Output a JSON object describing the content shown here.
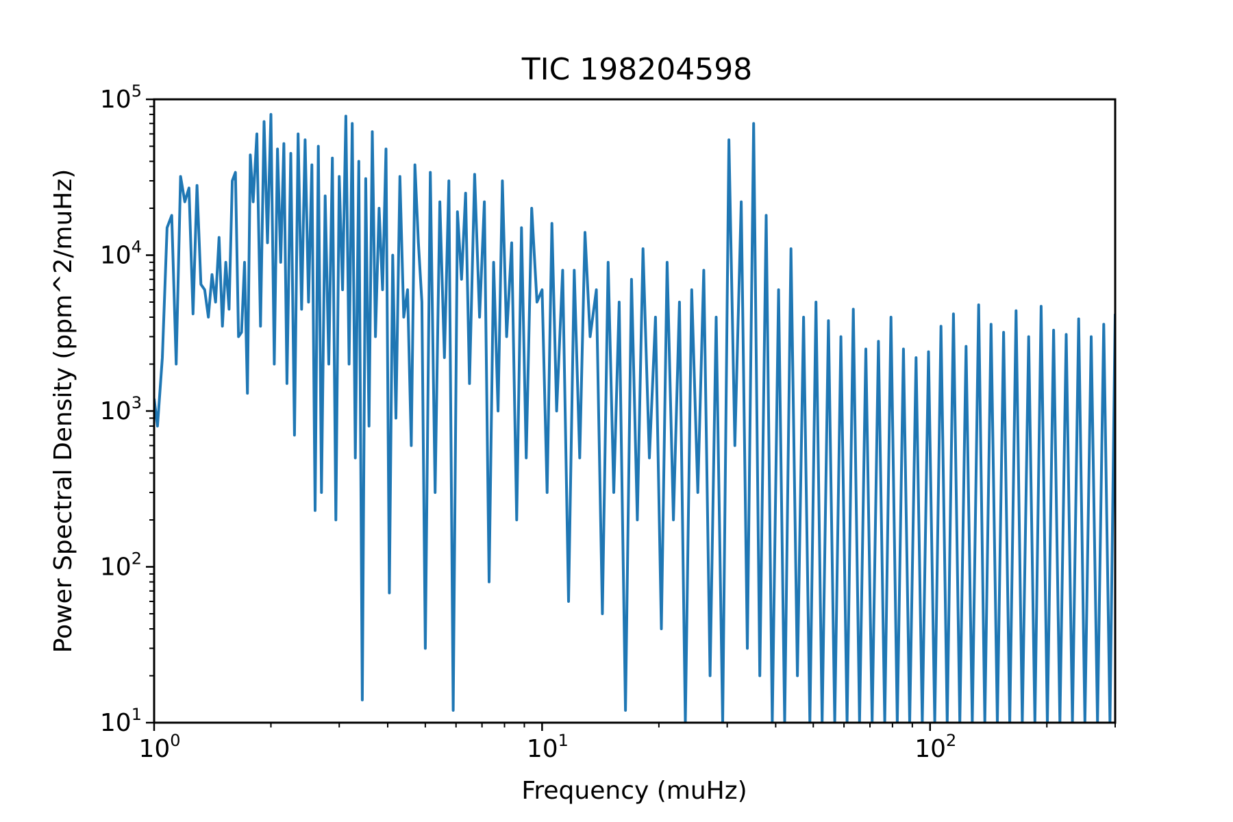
{
  "chart_data": {
    "type": "line",
    "title": "TIC 198204598",
    "xlabel": "Frequency (muHz)",
    "ylabel": "Power Spectral Density (ppm^2/muHz)",
    "xscale": "log",
    "yscale": "log",
    "xlim": [
      1,
      300
    ],
    "ylim": [
      10,
      100000
    ],
    "grid": false,
    "legend": "none",
    "line_color": "#1f77b4",
    "x_ticks": [
      {
        "value": 1,
        "base": "10",
        "exp": "0"
      },
      {
        "value": 10,
        "base": "10",
        "exp": "1"
      },
      {
        "value": 100,
        "base": "10",
        "exp": "2"
      }
    ],
    "y_ticks": [
      {
        "value": 10,
        "base": "10",
        "exp": "1"
      },
      {
        "value": 100,
        "base": "10",
        "exp": "2"
      },
      {
        "value": 1000,
        "base": "10",
        "exp": "3"
      },
      {
        "value": 10000,
        "base": "10",
        "exp": "4"
      },
      {
        "value": 100000,
        "base": "10",
        "exp": "5"
      }
    ],
    "series": [
      {
        "x": [
          1.0,
          1.02,
          1.05,
          1.08,
          1.11,
          1.14,
          1.17,
          1.2,
          1.23,
          1.26,
          1.29,
          1.32,
          1.35,
          1.38,
          1.41,
          1.44,
          1.47,
          1.5,
          1.53,
          1.56,
          1.59,
          1.62,
          1.65,
          1.68,
          1.71,
          1.74,
          1.77,
          1.8,
          1.84,
          1.88,
          1.92,
          1.96,
          2.0,
          2.04,
          2.08,
          2.12,
          2.16,
          2.2,
          2.25,
          2.3,
          2.35,
          2.4,
          2.45,
          2.5,
          2.55,
          2.6,
          2.65,
          2.7,
          2.76,
          2.82,
          2.88,
          2.94,
          3.0,
          3.06,
          3.12,
          3.18,
          3.24,
          3.3,
          3.37,
          3.44,
          3.51,
          3.58,
          3.65,
          3.72,
          3.8,
          3.88,
          3.96,
          4.04,
          4.12,
          4.2,
          4.3,
          4.4,
          4.5,
          4.6,
          4.7,
          4.8,
          4.9,
          5.0,
          5.15,
          5.3,
          5.45,
          5.6,
          5.75,
          5.9,
          6.05,
          6.2,
          6.35,
          6.5,
          6.7,
          6.9,
          7.1,
          7.3,
          7.5,
          7.7,
          7.9,
          8.1,
          8.35,
          8.6,
          8.85,
          9.1,
          9.4,
          9.7,
          10.0,
          10.3,
          10.6,
          10.9,
          11.3,
          11.7,
          12.1,
          12.5,
          12.9,
          13.3,
          13.8,
          14.3,
          14.8,
          15.3,
          15.8,
          16.4,
          17.0,
          17.6,
          18.2,
          18.9,
          19.6,
          20.3,
          21.0,
          21.8,
          22.6,
          23.4,
          24.3,
          25.2,
          26.1,
          27.1,
          28.1,
          29.2,
          30.3,
          31.4,
          32.6,
          33.8,
          35.1,
          36.4,
          37.8,
          39.2,
          40.7,
          42.2,
          43.8,
          45.5,
          47.2,
          49.0,
          50.8,
          52.7,
          54.7,
          56.8,
          58.9,
          61.1,
          63.4,
          65.8,
          68.3,
          70.9,
          73.6,
          76.4,
          79.3,
          82.3,
          85.4,
          88.6,
          92.0,
          95.5,
          99.1,
          102.8,
          106.7,
          110.7,
          114.9,
          119.3,
          123.8,
          128.5,
          133.4,
          138.4,
          143.6,
          149.1,
          154.7,
          160.5,
          166.6,
          172.9,
          179.5,
          186.3,
          193.3,
          200.6,
          208.2,
          216.1,
          224.3,
          232.8,
          241.6,
          250.7,
          260.2,
          270.1,
          280.3,
          290.9,
          300.0
        ],
        "y": [
          1200,
          800,
          2200,
          15000,
          18000,
          2000,
          32000,
          22000,
          27000,
          4200,
          28000,
          6500,
          6000,
          4000,
          7500,
          5000,
          13000,
          3500,
          9000,
          4500,
          30000,
          34000,
          3000,
          3200,
          9000,
          1300,
          44000,
          22000,
          60000,
          3500,
          72000,
          12000,
          80000,
          2000,
          48000,
          9000,
          52000,
          1500,
          45000,
          700,
          60000,
          4500,
          55000,
          5000,
          38000,
          230,
          50000,
          300,
          24000,
          2000,
          42000,
          200,
          32000,
          6000,
          78000,
          2000,
          70000,
          500,
          40000,
          14,
          31000,
          800,
          62000,
          3000,
          20000,
          6000,
          48000,
          68,
          10000,
          900,
          32000,
          4000,
          6000,
          600,
          38000,
          12000,
          5000,
          30,
          34000,
          300,
          22000,
          2200,
          30000,
          12,
          19000,
          7000,
          25000,
          1500,
          33000,
          4000,
          22000,
          80,
          9000,
          1000,
          30000,
          3000,
          12000,
          200,
          15000,
          500,
          20000,
          5000,
          6000,
          300,
          16000,
          1000,
          8000,
          60,
          8000,
          500,
          14000,
          3000,
          6000,
          50,
          9000,
          300,
          5000,
          12,
          7000,
          200,
          11000,
          500,
          4000,
          40,
          9000,
          200,
          5000,
          10,
          6000,
          300,
          8000,
          20,
          4000,
          10,
          55000,
          600,
          22000,
          30,
          70000,
          20,
          18000,
          10,
          6000,
          10,
          11000,
          20,
          4000,
          10,
          5000,
          10,
          3800,
          10,
          3000,
          10,
          4500,
          10,
          2500,
          10,
          2800,
          10,
          4000,
          10,
          2500,
          10,
          2200,
          10,
          2400,
          10,
          3500,
          10,
          4200,
          10,
          2600,
          10,
          4800,
          10,
          3600,
          10,
          3200,
          10,
          4400,
          10,
          3000,
          10,
          4700,
          10,
          3300,
          10,
          3100,
          10,
          3900,
          10,
          3000,
          10,
          3600,
          10,
          4200
        ]
      }
    ]
  }
}
